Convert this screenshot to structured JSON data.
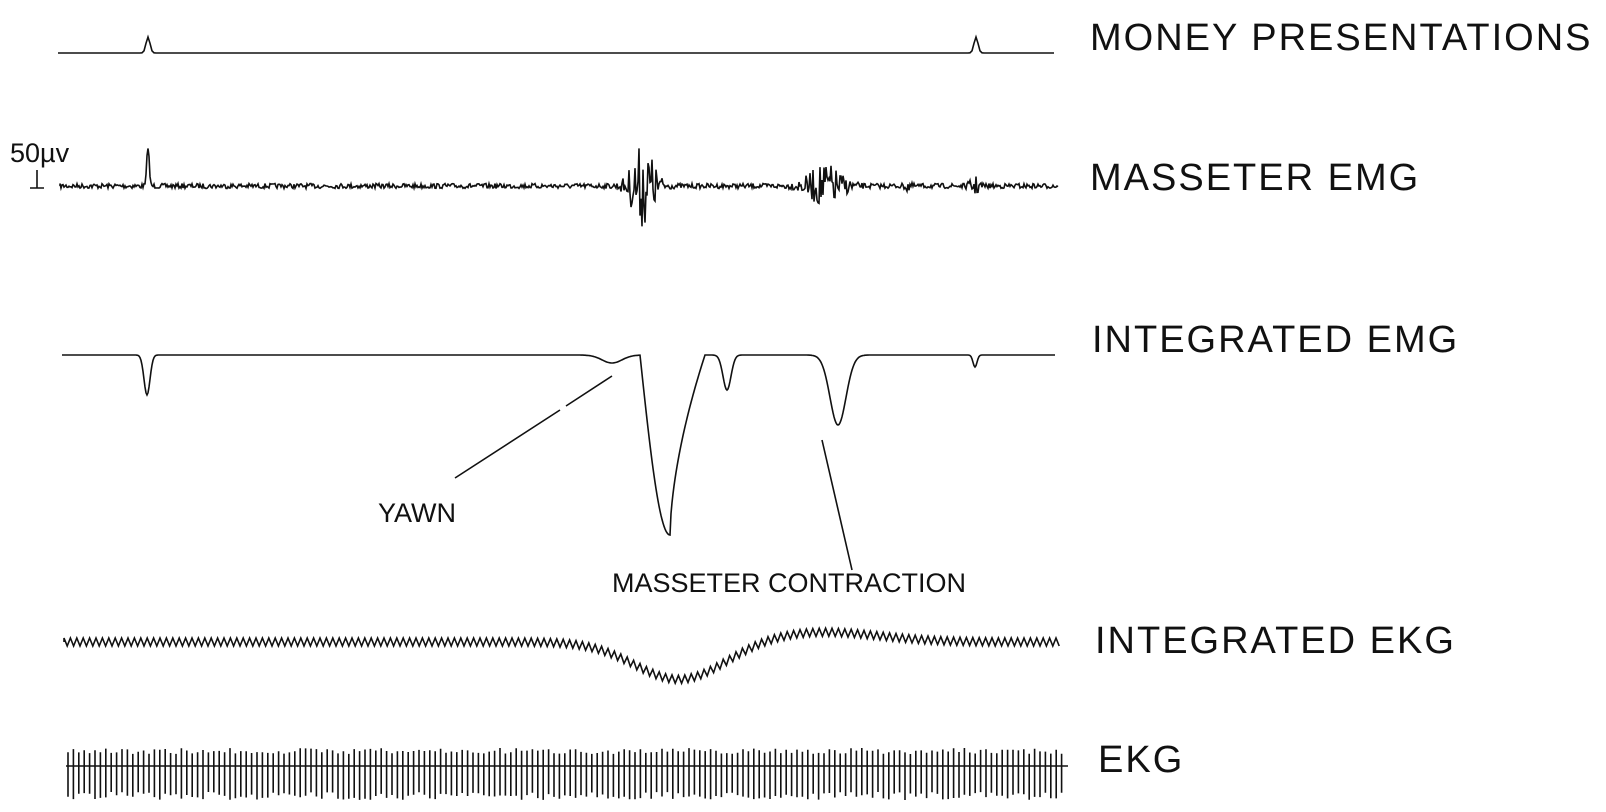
{
  "scale_label": "50µv",
  "traces": [
    {
      "label": "MONEY PRESENTATIONS"
    },
    {
      "label": "MASSETER EMG"
    },
    {
      "label": "INTEGRATED EMG"
    },
    {
      "label": "INTEGRATED EKG"
    },
    {
      "label": "EKG"
    }
  ],
  "annotations": [
    {
      "label": "YAWN"
    },
    {
      "label": "MASSETER CONTRACTION"
    }
  ]
}
